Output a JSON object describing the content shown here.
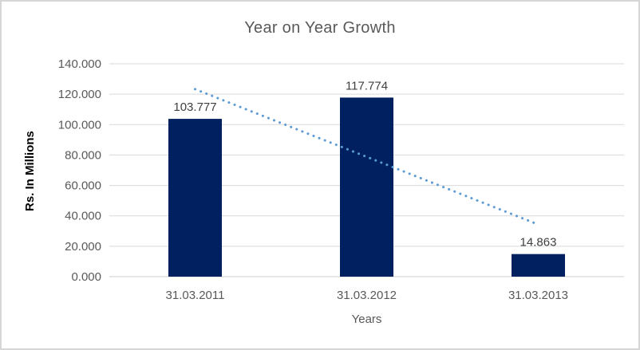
{
  "chart_data": {
    "type": "bar",
    "title": "Year on Year Growth",
    "categories": [
      "31.03.2011",
      "31.03.2012",
      "31.03.2013"
    ],
    "values": [
      103.777,
      117.774,
      14.863
    ],
    "data_labels": [
      "103.777",
      "117.774",
      "14.863"
    ],
    "xlabel": "Years",
    "ylabel": "Rs. In Millions",
    "ylim": [
      0,
      140
    ],
    "ytick_step": 20,
    "ytick_labels": [
      "0.000",
      "20.000",
      "40.000",
      "60.000",
      "80.000",
      "100.000",
      "120.000",
      "140.000"
    ],
    "grid": true,
    "legend": "none",
    "trendline": {
      "type": "linear",
      "style": "dotted",
      "start_value": 123.3,
      "end_value": 34.3
    },
    "colors": {
      "bar": "#002060",
      "trendline": "#5B9BD5",
      "gridline": "#D9D9D9",
      "axis_line": "#D0CECE",
      "tick_label": "#595959",
      "category_label": "#595959",
      "data_label": "#404040",
      "title": "#595959",
      "border": "#D6D6D6",
      "background": "#FFFFFF"
    }
  }
}
